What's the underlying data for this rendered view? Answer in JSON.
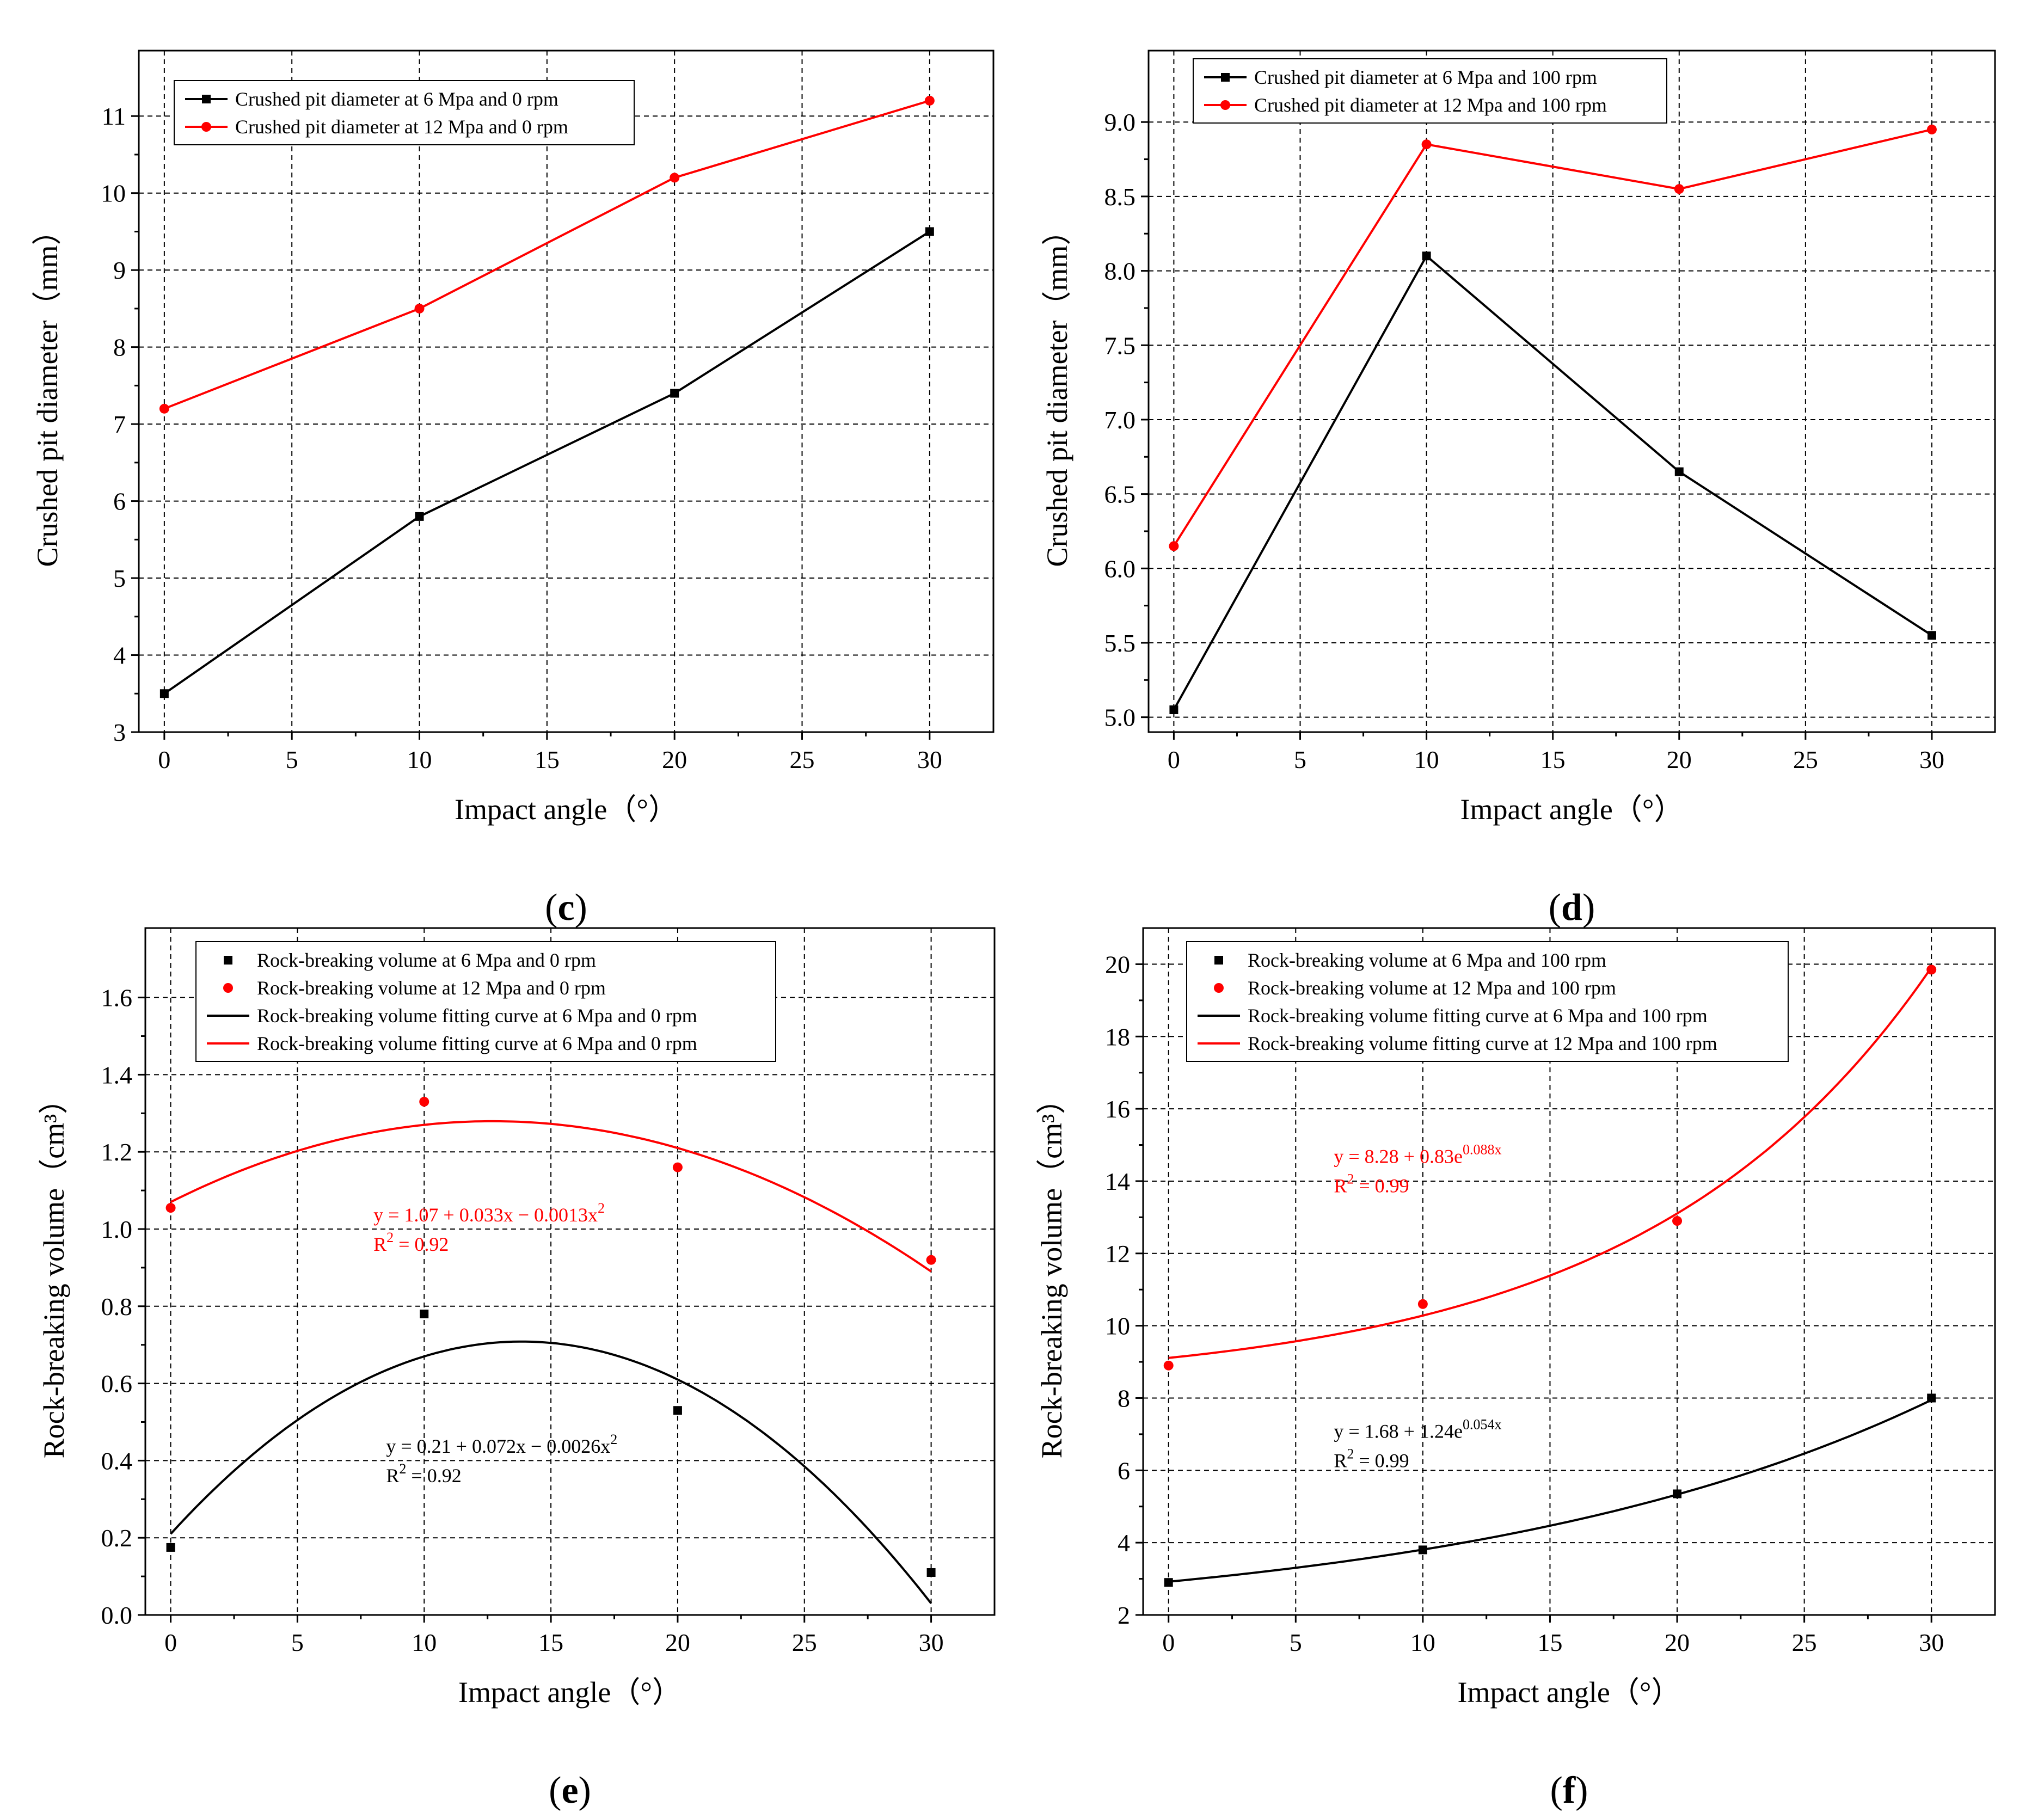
{
  "colors": {
    "black": "#000000",
    "red": "#ff0000",
    "background": "#ffffff"
  },
  "chart_data": [
    {
      "id": "c",
      "panel_label": "c",
      "type": "line",
      "xlabel": "Impact angle（°）",
      "ylabel": "Crushed pit diameter（mm）",
      "xlim": [
        -1,
        32.5
      ],
      "ylim": [
        3,
        11.85
      ],
      "xticks": [
        0,
        5,
        10,
        15,
        20,
        25,
        30
      ],
      "xtick_labels": [
        "0",
        "5",
        "10",
        "15",
        "20",
        "25",
        "30"
      ],
      "yticks": [
        3,
        4,
        5,
        6,
        7,
        8,
        9,
        10,
        11
      ],
      "ytick_labels": [
        "3",
        "4",
        "5",
        "6",
        "7",
        "8",
        "9",
        "10",
        "11"
      ],
      "grid": true,
      "legend_position": "top-left",
      "series": [
        {
          "name": "Crushed pit diameter at 6 Mpa and 0 rpm",
          "color": "#000000",
          "marker": "square",
          "line": true,
          "x": [
            0,
            10,
            20,
            30
          ],
          "values": [
            3.5,
            5.8,
            7.4,
            9.5
          ]
        },
        {
          "name": "Crushed pit diameter at 12 Mpa and 0 rpm",
          "color": "#ff0000",
          "marker": "circle",
          "line": true,
          "x": [
            0,
            10,
            20,
            30
          ],
          "values": [
            7.2,
            8.5,
            10.2,
            11.2
          ]
        }
      ],
      "annotations": []
    },
    {
      "id": "d",
      "panel_label": "d",
      "type": "line",
      "xlabel": "Impact angle（°）",
      "ylabel": "Crushed pit diameter（mm）",
      "xlim": [
        -1,
        32.5
      ],
      "ylim": [
        4.9,
        9.48
      ],
      "xticks": [
        0,
        5,
        10,
        15,
        20,
        25,
        30
      ],
      "xtick_labels": [
        "0",
        "5",
        "10",
        "15",
        "20",
        "25",
        "30"
      ],
      "yticks": [
        5.0,
        5.5,
        6.0,
        6.5,
        7.0,
        7.5,
        8.0,
        8.5,
        9.0
      ],
      "ytick_labels": [
        "5.0",
        "5.5",
        "6.0",
        "6.5",
        "7.0",
        "7.5",
        "8.0",
        "8.5",
        "9.0"
      ],
      "grid": true,
      "legend_position": "top-left",
      "series": [
        {
          "name": "Crushed pit diameter at 6 Mpa and 100 rpm",
          "color": "#000000",
          "marker": "square",
          "line": true,
          "x": [
            0,
            10,
            20,
            30
          ],
          "values": [
            5.05,
            8.1,
            6.65,
            5.55
          ]
        },
        {
          "name": "Crushed pit diameter at 12 Mpa and 100 rpm",
          "color": "#ff0000",
          "marker": "circle",
          "line": true,
          "x": [
            0,
            10,
            20,
            30
          ],
          "values": [
            6.15,
            8.85,
            8.55,
            8.95
          ]
        }
      ],
      "annotations": []
    },
    {
      "id": "e",
      "panel_label": "e",
      "type": "scatter",
      "xlabel": "Impact angle（°）",
      "ylabel": "Rock-breaking volume（cm³）",
      "xlim": [
        -1,
        32.5
      ],
      "ylim": [
        0,
        1.78
      ],
      "xticks": [
        0,
        5,
        10,
        15,
        20,
        25,
        30
      ],
      "xtick_labels": [
        "0",
        "5",
        "10",
        "15",
        "20",
        "25",
        "30"
      ],
      "yticks": [
        0,
        0.2,
        0.4,
        0.6,
        0.8,
        1.0,
        1.2,
        1.4,
        1.6
      ],
      "ytick_labels": [
        "0.0",
        "0.2",
        "0.4",
        "0.6",
        "0.8",
        "1.0",
        "1.2",
        "1.4",
        "1.6"
      ],
      "grid": true,
      "legend_position": "top-left",
      "series": [
        {
          "name": "Rock-breaking volume at 6 Mpa and 0 rpm",
          "color": "#000000",
          "marker": "square",
          "line": false,
          "x": [
            0,
            10,
            20,
            30
          ],
          "values": [
            0.175,
            0.78,
            0.53,
            0.11
          ]
        },
        {
          "name": "Rock-breaking volume at 12 Mpa and 0 rpm",
          "color": "#ff0000",
          "marker": "circle",
          "line": false,
          "x": [
            0,
            10,
            20,
            30
          ],
          "values": [
            1.055,
            1.33,
            1.16,
            0.92
          ]
        }
      ],
      "fits": [
        {
          "name": "Rock-breaking volume fitting curve at 6 Mpa and 0 rpm",
          "color": "#000000",
          "model": "poly2",
          "coef": [
            0.21,
            0.072,
            -0.0026
          ],
          "x_range": [
            0,
            30
          ]
        },
        {
          "name": "Rock-breaking volume fitting curve at 6 Mpa and 0 rpm",
          "color": "#ff0000",
          "model": "poly2",
          "coef": [
            1.07,
            0.033,
            -0.0013
          ],
          "x_range": [
            0,
            30
          ]
        }
      ],
      "annotations": [
        {
          "color": "#ff0000",
          "x": 8,
          "y": 1.02,
          "line1": "y = 1.07 + 0.033x − 0.0013x",
          "sup1": "2",
          "r2_label": "R",
          "r2_sup": "2",
          "r2_value": " = 0.92"
        },
        {
          "color": "#000000",
          "x": 8.5,
          "y": 0.42,
          "line1": "y = 0.21 + 0.072x − 0.0026x",
          "sup1": "2",
          "r2_label": "R",
          "r2_sup": "2",
          "r2_value": " = 0.92"
        }
      ]
    },
    {
      "id": "f",
      "panel_label": "f",
      "type": "scatter",
      "xlabel": "Impact angle（°）",
      "ylabel": "Rock-breaking volume（cm³）",
      "xlim": [
        -1,
        32.5
      ],
      "ylim": [
        2,
        21
      ],
      "xticks": [
        0,
        5,
        10,
        15,
        20,
        25,
        30
      ],
      "xtick_labels": [
        "0",
        "5",
        "10",
        "15",
        "20",
        "25",
        "30"
      ],
      "yticks": [
        2,
        4,
        6,
        8,
        10,
        12,
        14,
        16,
        18,
        20
      ],
      "ytick_labels": [
        "2",
        "4",
        "6",
        "8",
        "10",
        "12",
        "14",
        "16",
        "18",
        "20"
      ],
      "grid": true,
      "legend_position": "top-left",
      "series": [
        {
          "name": "Rock-breaking volume at 6 Mpa and 100 rpm",
          "color": "#000000",
          "marker": "square",
          "line": false,
          "x": [
            0,
            10,
            20,
            30
          ],
          "values": [
            2.9,
            3.8,
            5.35,
            8.0
          ]
        },
        {
          "name": "Rock-breaking volume at 12 Mpa and 100 rpm",
          "color": "#ff0000",
          "marker": "circle",
          "line": false,
          "x": [
            0,
            10,
            20,
            30
          ],
          "values": [
            8.9,
            10.6,
            12.9,
            19.85
          ]
        }
      ],
      "fits": [
        {
          "name": "Rock-breaking volume fitting curve at 6 Mpa and 100 rpm",
          "color": "#000000",
          "model": "exp",
          "a": 1.68,
          "b": 1.24,
          "k": 0.054,
          "x_range": [
            0,
            30
          ]
        },
        {
          "name": "Rock-breaking volume fitting curve at 12 Mpa and 100 rpm",
          "color": "#ff0000",
          "model": "exp",
          "a": 8.28,
          "b": 0.83,
          "k": 0.088,
          "x_range": [
            0,
            30
          ]
        }
      ],
      "annotations": [
        {
          "color": "#ff0000",
          "x": 6.5,
          "y": 14.5,
          "line1": "y = 8.28 + 0.83e",
          "sup1": "0.088x",
          "r2_label": "R",
          "r2_sup": "2",
          "r2_value": " = 0.99"
        },
        {
          "color": "#000000",
          "x": 6.5,
          "y": 6.9,
          "line1": "y = 1.68 + 1.24e",
          "sup1": "0.054x",
          "r2_label": "R",
          "r2_sup": "2",
          "r2_value": " = 0.99"
        }
      ]
    }
  ]
}
